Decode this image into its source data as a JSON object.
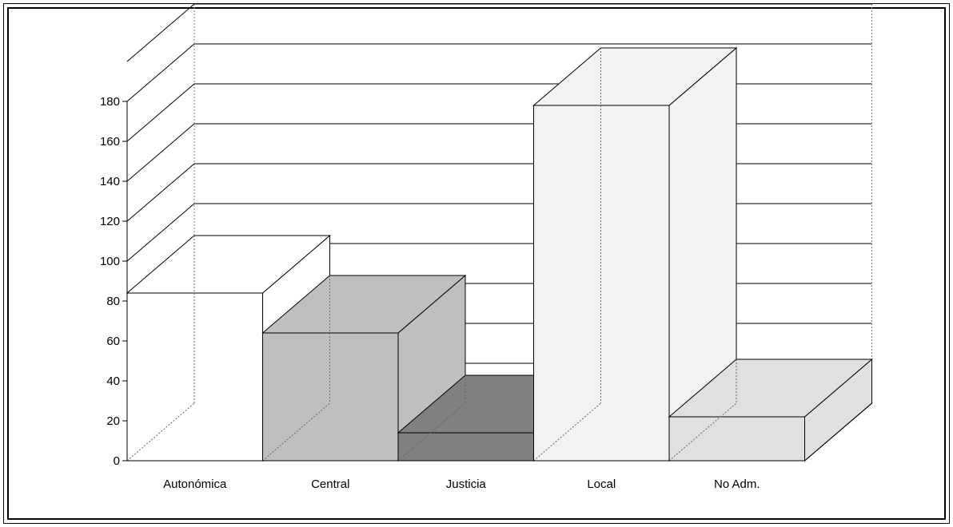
{
  "chart_data": {
    "type": "bar",
    "three_d": true,
    "title": "",
    "xlabel": "",
    "ylabel": "",
    "categories": [
      "Autonómica",
      "Central",
      "Justicia",
      "Local",
      "No Adm."
    ],
    "values": [
      84,
      64,
      14,
      178,
      22
    ],
    "ylim": [
      0,
      180
    ],
    "yticks": [
      0,
      20,
      40,
      60,
      80,
      100,
      120,
      140,
      160,
      180
    ],
    "grid": true,
    "legend": "none",
    "colors": [
      "#ffffff",
      "#bfbfbf",
      "#808080",
      "#f2f2f2",
      "#e0e0e0"
    ]
  }
}
